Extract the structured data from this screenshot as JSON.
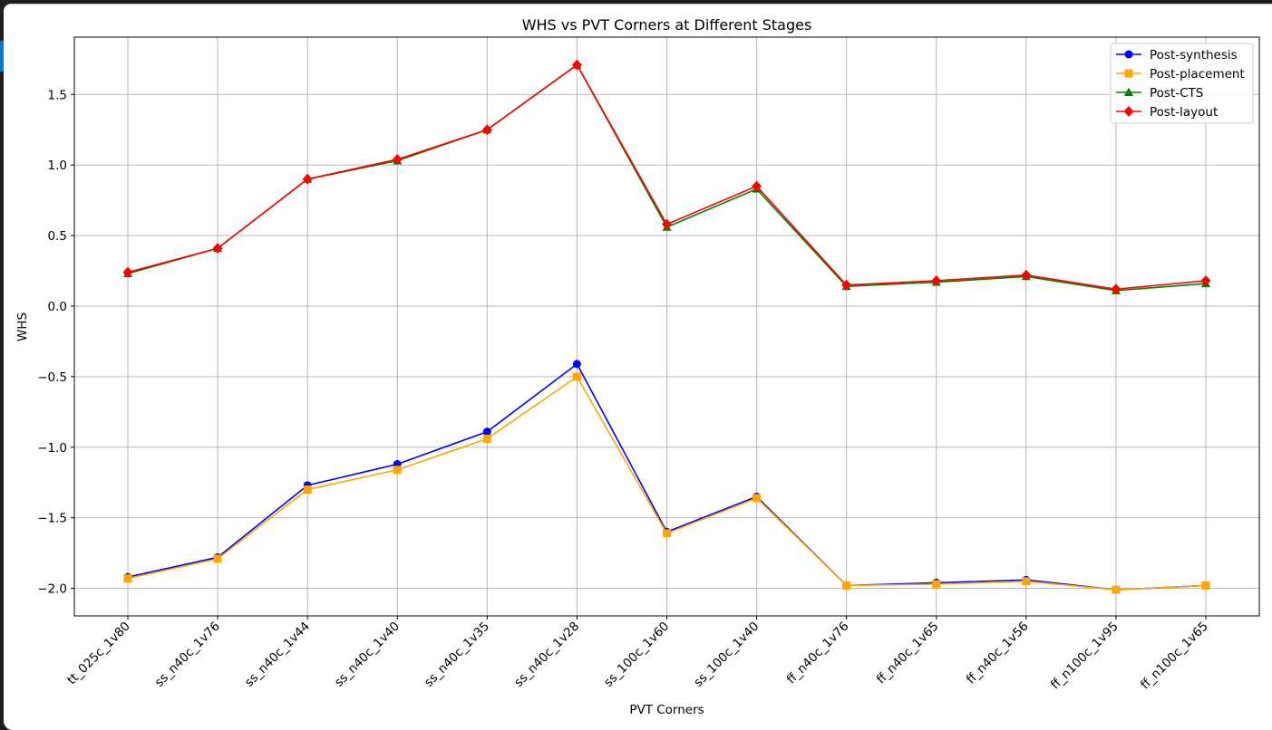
{
  "chart_data": {
    "type": "line",
    "title": "WHS vs PVT Corners at Different Stages",
    "xlabel": "PVT Corners",
    "ylabel": "WHS",
    "categories": [
      "tt_025c_1v80",
      "ss_n40c_1v76",
      "ss_n40c_1v44",
      "ss_n40c_1v40",
      "ss_n40c_1v35",
      "ss_n40c_1v28",
      "ss_100c_1v60",
      "ss_100c_1v40",
      "ff_n40c_1v76",
      "ff_n40c_1v65",
      "ff_n40c_1v56",
      "ff_n100c_1v95",
      "ff_n100c_1v65"
    ],
    "ylim": [
      -2.2,
      1.9
    ],
    "yticks": [
      -2.0,
      -1.5,
      -1.0,
      -0.5,
      0.0,
      0.5,
      1.0,
      1.5
    ],
    "ytick_labels": [
      "−2.0",
      "−1.5",
      "−1.0",
      "−0.5",
      "0.0",
      "0.5",
      "1.0",
      "1.5"
    ],
    "grid": true,
    "legend_position": "top-right",
    "series": [
      {
        "name": "Post-synthesis",
        "color": "#0000ff",
        "marker": "circle",
        "values": [
          -1.92,
          -1.78,
          -1.27,
          -1.12,
          -0.89,
          -0.41,
          -1.6,
          -1.35,
          -1.98,
          -1.96,
          -1.94,
          -2.01,
          -1.98
        ]
      },
      {
        "name": "Post-placement",
        "color": "#ffa500",
        "marker": "square",
        "values": [
          -1.93,
          -1.79,
          -1.3,
          -1.16,
          -0.94,
          -0.5,
          -1.61,
          -1.36,
          -1.98,
          -1.97,
          -1.95,
          -2.01,
          -1.98
        ]
      },
      {
        "name": "Post-CTS",
        "color": "#008000",
        "marker": "triangle",
        "values": [
          0.23,
          0.41,
          0.9,
          1.03,
          1.25,
          1.71,
          0.56,
          0.83,
          0.14,
          0.17,
          0.21,
          0.11,
          0.16
        ]
      },
      {
        "name": "Post-layout",
        "color": "#ff0000",
        "marker": "diamond",
        "values": [
          0.24,
          0.41,
          0.9,
          1.04,
          1.25,
          1.71,
          0.58,
          0.85,
          0.15,
          0.18,
          0.22,
          0.12,
          0.18
        ]
      }
    ]
  }
}
